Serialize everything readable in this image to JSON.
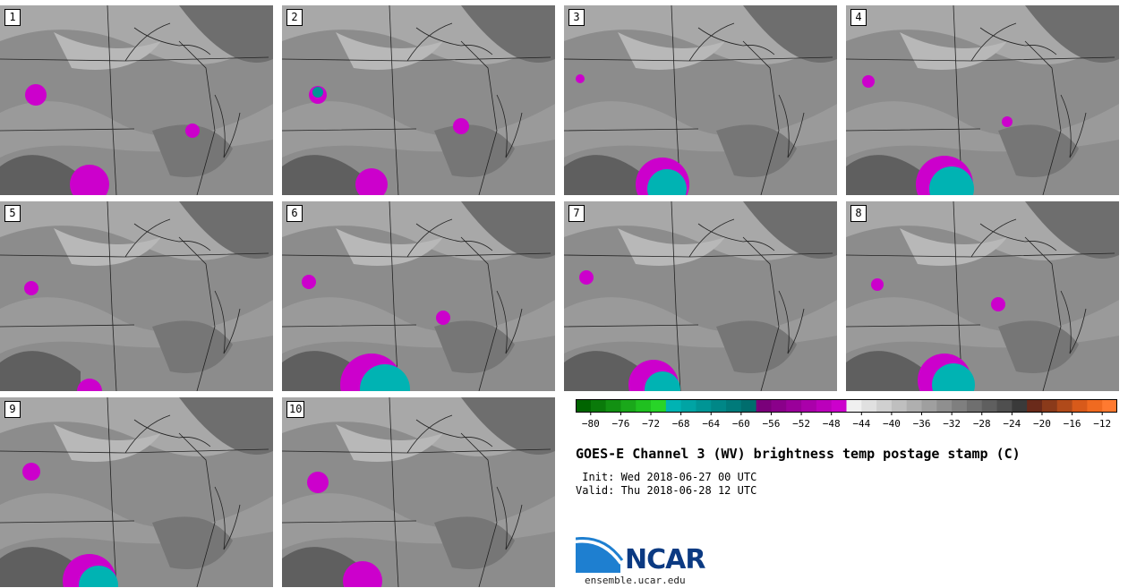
{
  "title": "GOES-E Channel 3 (WV) brightness temp postage stamp (C)",
  "init": " Init: Wed 2018-06-27 00 UTC",
  "valid": "Valid: Thu 2018-06-28 12 UTC",
  "logo_text": "NCAR",
  "url": "ensemble.ucar.edu",
  "panels": [
    {
      "label": "1"
    },
    {
      "label": "2"
    },
    {
      "label": "3"
    },
    {
      "label": "4"
    },
    {
      "label": "5"
    },
    {
      "label": "6"
    },
    {
      "label": "7"
    },
    {
      "label": "8"
    },
    {
      "label": "9"
    },
    {
      "label": "10"
    }
  ],
  "colorbar": {
    "ticks": [
      "−80",
      "−76",
      "−72",
      "−68",
      "−64",
      "−60",
      "−56",
      "−52",
      "−48",
      "−44",
      "−40",
      "−36",
      "−32",
      "−28",
      "−24",
      "−20",
      "−16",
      "−12"
    ],
    "range": [
      -82,
      -10
    ],
    "colors": [
      "#006400",
      "#0a7a0a",
      "#129012",
      "#1aa81a",
      "#20c020",
      "#28d428",
      "#00b3b3",
      "#00a4a4",
      "#009595",
      "#008787",
      "#007a7a",
      "#006d6d",
      "#7a007a",
      "#8a008a",
      "#9a009a",
      "#aa00aa",
      "#bb00bb",
      "#cc00cc",
      "#f0f0f0",
      "#e0e0e0",
      "#d0d0d0",
      "#bfbfbf",
      "#afafaf",
      "#9f9f9f",
      "#8f8f8f",
      "#7f7f7f",
      "#6f6f6f",
      "#5f5f5f",
      "#4f4f4f",
      "#3a3a3a",
      "#6a2a1a",
      "#8a3a1a",
      "#b04a1a",
      "#d85a1a",
      "#f06a20",
      "#ff7a30"
    ]
  }
}
